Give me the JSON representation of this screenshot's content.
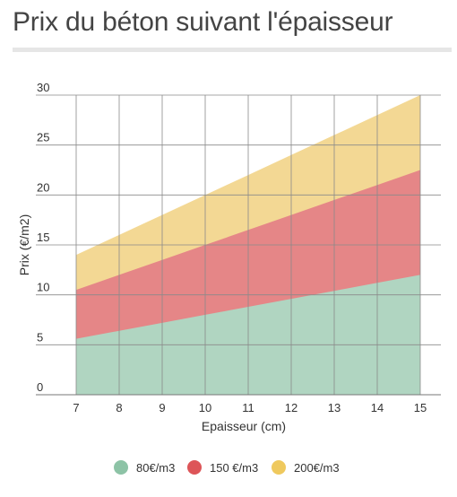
{
  "title": "Prix du béton suivant l'épaisseur",
  "chart_data": {
    "type": "area",
    "stacked": true,
    "x": [
      7,
      8,
      9,
      10,
      11,
      12,
      13,
      14,
      15
    ],
    "xlabel": "Epaisseur (cm)",
    "ylabel": "Prix (€/m2)",
    "xlim": [
      7,
      15
    ],
    "ylim": [
      0,
      30
    ],
    "x_ticks": [
      "7",
      "8",
      "9",
      "10",
      "11",
      "12",
      "13",
      "14",
      "15"
    ],
    "y_ticks": [
      "0",
      "5",
      "10",
      "15",
      "20",
      "25",
      "30"
    ],
    "grid": true,
    "legend_position": "bottom-center",
    "series": [
      {
        "name": "80€/m3",
        "color": "#b0d5c1",
        "marker_color": "#8dc3a6",
        "values": [
          5.6,
          6.4,
          7.2,
          8.0,
          8.8,
          9.6,
          10.4,
          11.2,
          12.0
        ]
      },
      {
        "name": "150 €/m3",
        "color": "#e58687",
        "marker_color": "#dd5558",
        "values": [
          10.5,
          12.0,
          13.5,
          15.0,
          16.5,
          18.0,
          19.5,
          21.0,
          22.5
        ]
      },
      {
        "name": "200€/m3",
        "color": "#f3d894",
        "marker_color": "#efc95e",
        "values": [
          14.0,
          16.0,
          18.0,
          20.0,
          22.0,
          24.0,
          26.0,
          28.0,
          30.0
        ]
      }
    ]
  }
}
